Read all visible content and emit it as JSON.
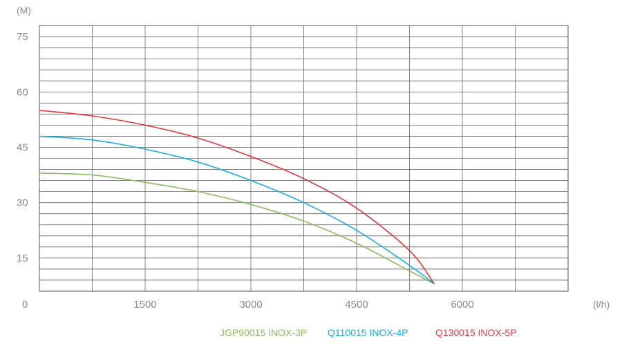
{
  "chart_data": {
    "type": "line",
    "title": "",
    "xlabel": "(l/h)",
    "ylabel": "(M)",
    "origin_label": "0",
    "xlim": [
      0,
      7500
    ],
    "ylim": [
      6,
      78
    ],
    "x_ticks": [
      1500,
      3000,
      4500,
      6000
    ],
    "x_tick_labels": [
      "1500",
      "3000",
      "4500",
      "6000"
    ],
    "y_ticks": [
      15,
      30,
      45,
      60,
      75
    ],
    "y_tick_labels": [
      "15",
      "30",
      "45",
      "60",
      "75"
    ],
    "grid": true,
    "legend_position": "bottom-right",
    "series": [
      {
        "name": "JGP90015 INOX-3P",
        "color": "#8dbb5e",
        "x": [
          0,
          750,
          1500,
          2250,
          3000,
          3750,
          4500,
          5250,
          5600
        ],
        "y": [
          38,
          37.5,
          35.5,
          33,
          29.5,
          25,
          19,
          11.5,
          8
        ]
      },
      {
        "name": "Q110015 INOX-4P",
        "color": "#1aaee3",
        "x": [
          0,
          750,
          1500,
          2250,
          3000,
          3750,
          4500,
          5250,
          5600
        ],
        "y": [
          48,
          47,
          44.5,
          41,
          36,
          30,
          22.5,
          13,
          8
        ]
      },
      {
        "name": "Q130015 INOX-5P",
        "color": "#e8343c",
        "x": [
          0,
          750,
          1500,
          2250,
          3000,
          3750,
          4500,
          5250,
          5600
        ],
        "y": [
          55,
          53.5,
          51,
          47.5,
          42.5,
          36.5,
          28.5,
          17,
          8
        ]
      }
    ]
  }
}
